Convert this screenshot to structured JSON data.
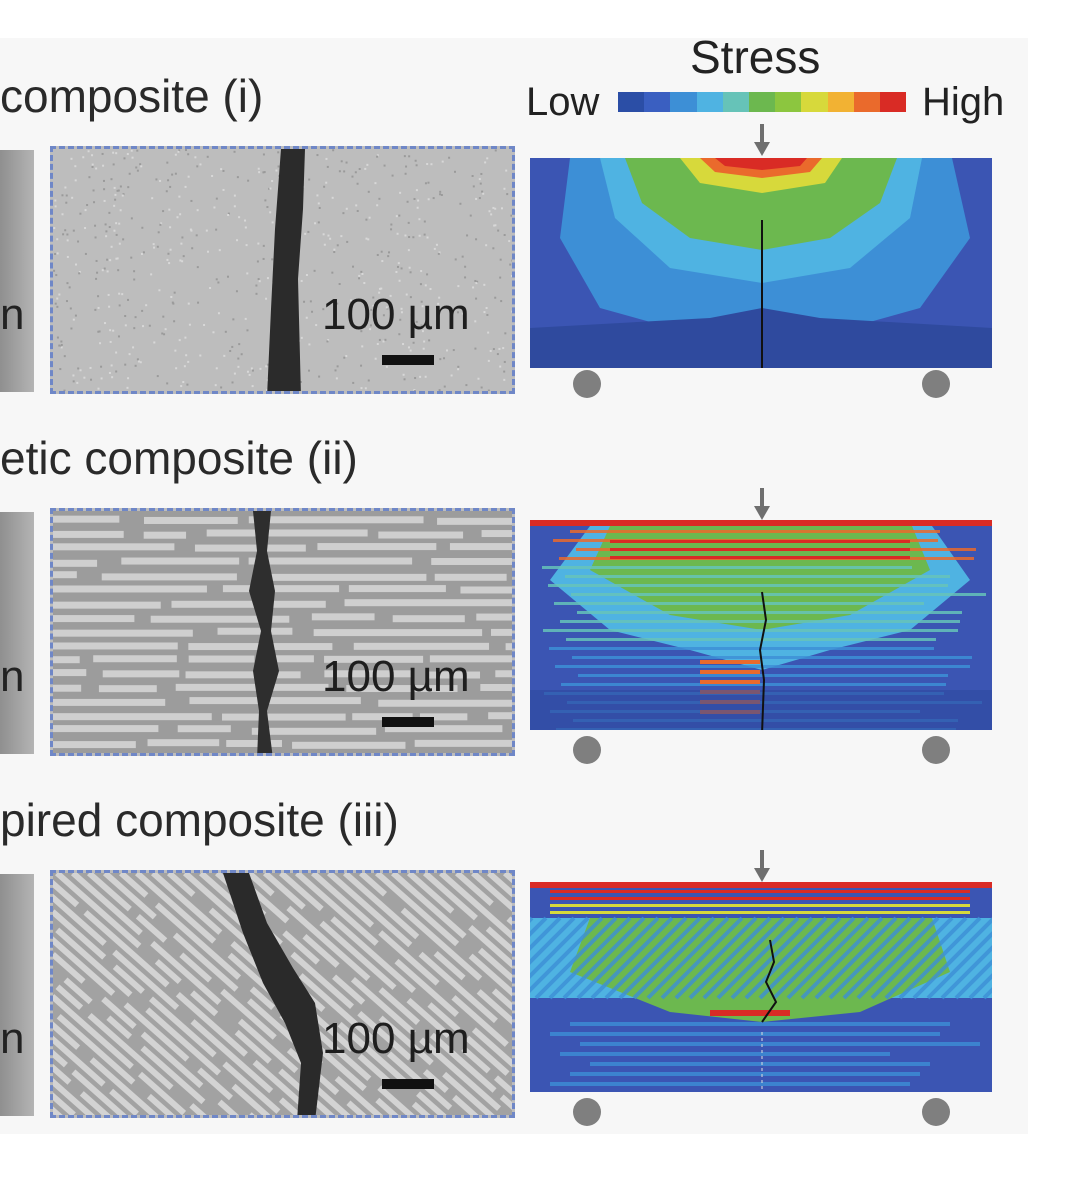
{
  "legend": {
    "title": "Stress",
    "low_label": "Low",
    "high_label": "High",
    "colors": [
      "#2b4ea6",
      "#3a5fc1",
      "#3d8fd6",
      "#4fb3e2",
      "#66c3b8",
      "#6cb84f",
      "#8cc63f",
      "#d7d93b",
      "#f2b233",
      "#ea6a2c",
      "#d92b25"
    ]
  },
  "rows": [
    {
      "title": "composite (i)",
      "strip_letter": "n",
      "scale_label": "100 µm"
    },
    {
      "title": "etic composite (ii)",
      "strip_letter": "n",
      "scale_label": "100 µm"
    },
    {
      "title": "pired composite (iii)",
      "strip_letter": "n",
      "scale_label": "100 µm"
    }
  ],
  "colors": {
    "fem_base": "#3b55b3",
    "support": "#7f7f7f",
    "sem_border": "#6f87c7"
  }
}
